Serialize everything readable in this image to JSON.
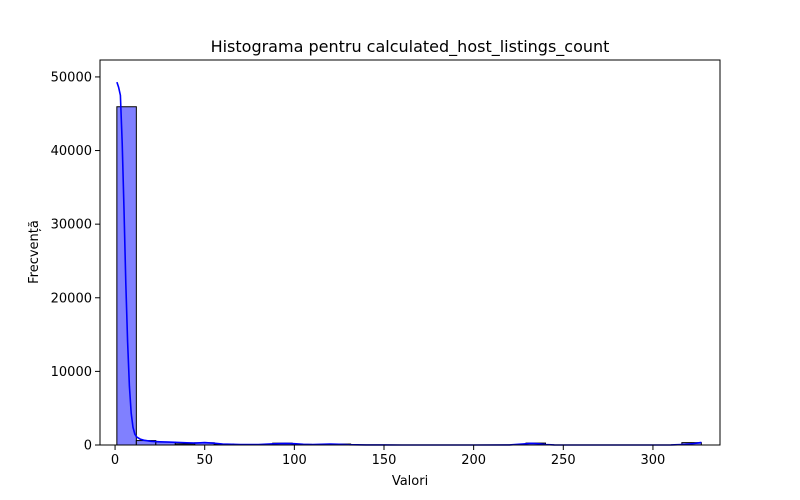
{
  "chart_data": {
    "type": "bar",
    "title": "Histograma pentru calculated_host_listings_count",
    "xlabel": "Valori",
    "ylabel": "Frecvență",
    "xlim": [
      -8.4,
      337.4
    ],
    "ylim": [
      0,
      52300
    ],
    "x_ticks": [
      0,
      50,
      100,
      150,
      200,
      250,
      300
    ],
    "y_ticks": [
      0,
      10000,
      20000,
      30000,
      40000,
      50000
    ],
    "bins": {
      "edges": [
        1,
        11.87,
        22.73,
        33.6,
        44.47,
        55.33,
        66.2,
        77.07,
        87.93,
        98.8,
        109.67,
        120.53,
        131.4,
        142.27,
        153.13,
        164,
        174.87,
        185.73,
        196.6,
        207.47,
        218.33,
        229.2,
        240.07,
        250.93,
        261.8,
        272.67,
        283.53,
        294.4,
        305.27,
        316.13,
        327
      ],
      "counts": [
        45950,
        600,
        400,
        150,
        300,
        120,
        60,
        60,
        250,
        80,
        40,
        130,
        0,
        0,
        0,
        0,
        0,
        0,
        0,
        0,
        0,
        260,
        0,
        0,
        0,
        0,
        0,
        0,
        0,
        320
      ]
    },
    "kde": {
      "x": [
        1,
        2,
        3,
        4,
        5,
        6,
        7,
        8,
        9,
        10,
        11,
        12,
        14,
        16,
        20,
        25,
        30,
        35,
        40,
        45,
        50,
        55,
        60,
        70,
        80,
        90,
        95,
        100,
        105,
        110,
        120,
        125,
        130,
        140,
        150,
        160,
        180,
        200,
        220,
        228,
        232,
        236,
        240,
        245,
        250,
        270,
        290,
        310,
        318,
        323,
        327
      ],
      "y": [
        49300,
        48600,
        47500,
        41000,
        32000,
        22000,
        14000,
        8000,
        4300,
        2400,
        1500,
        1100,
        800,
        650,
        500,
        430,
        400,
        350,
        300,
        260,
        320,
        250,
        130,
        60,
        60,
        180,
        220,
        180,
        90,
        60,
        120,
        100,
        40,
        20,
        10,
        5,
        5,
        5,
        20,
        150,
        230,
        170,
        70,
        10,
        5,
        5,
        5,
        10,
        80,
        200,
        350
      ]
    },
    "bar_fill": "#8080ff",
    "bar_stroke": "#000000",
    "kde_color": "#0000ff",
    "grid": false,
    "legend": "none"
  }
}
